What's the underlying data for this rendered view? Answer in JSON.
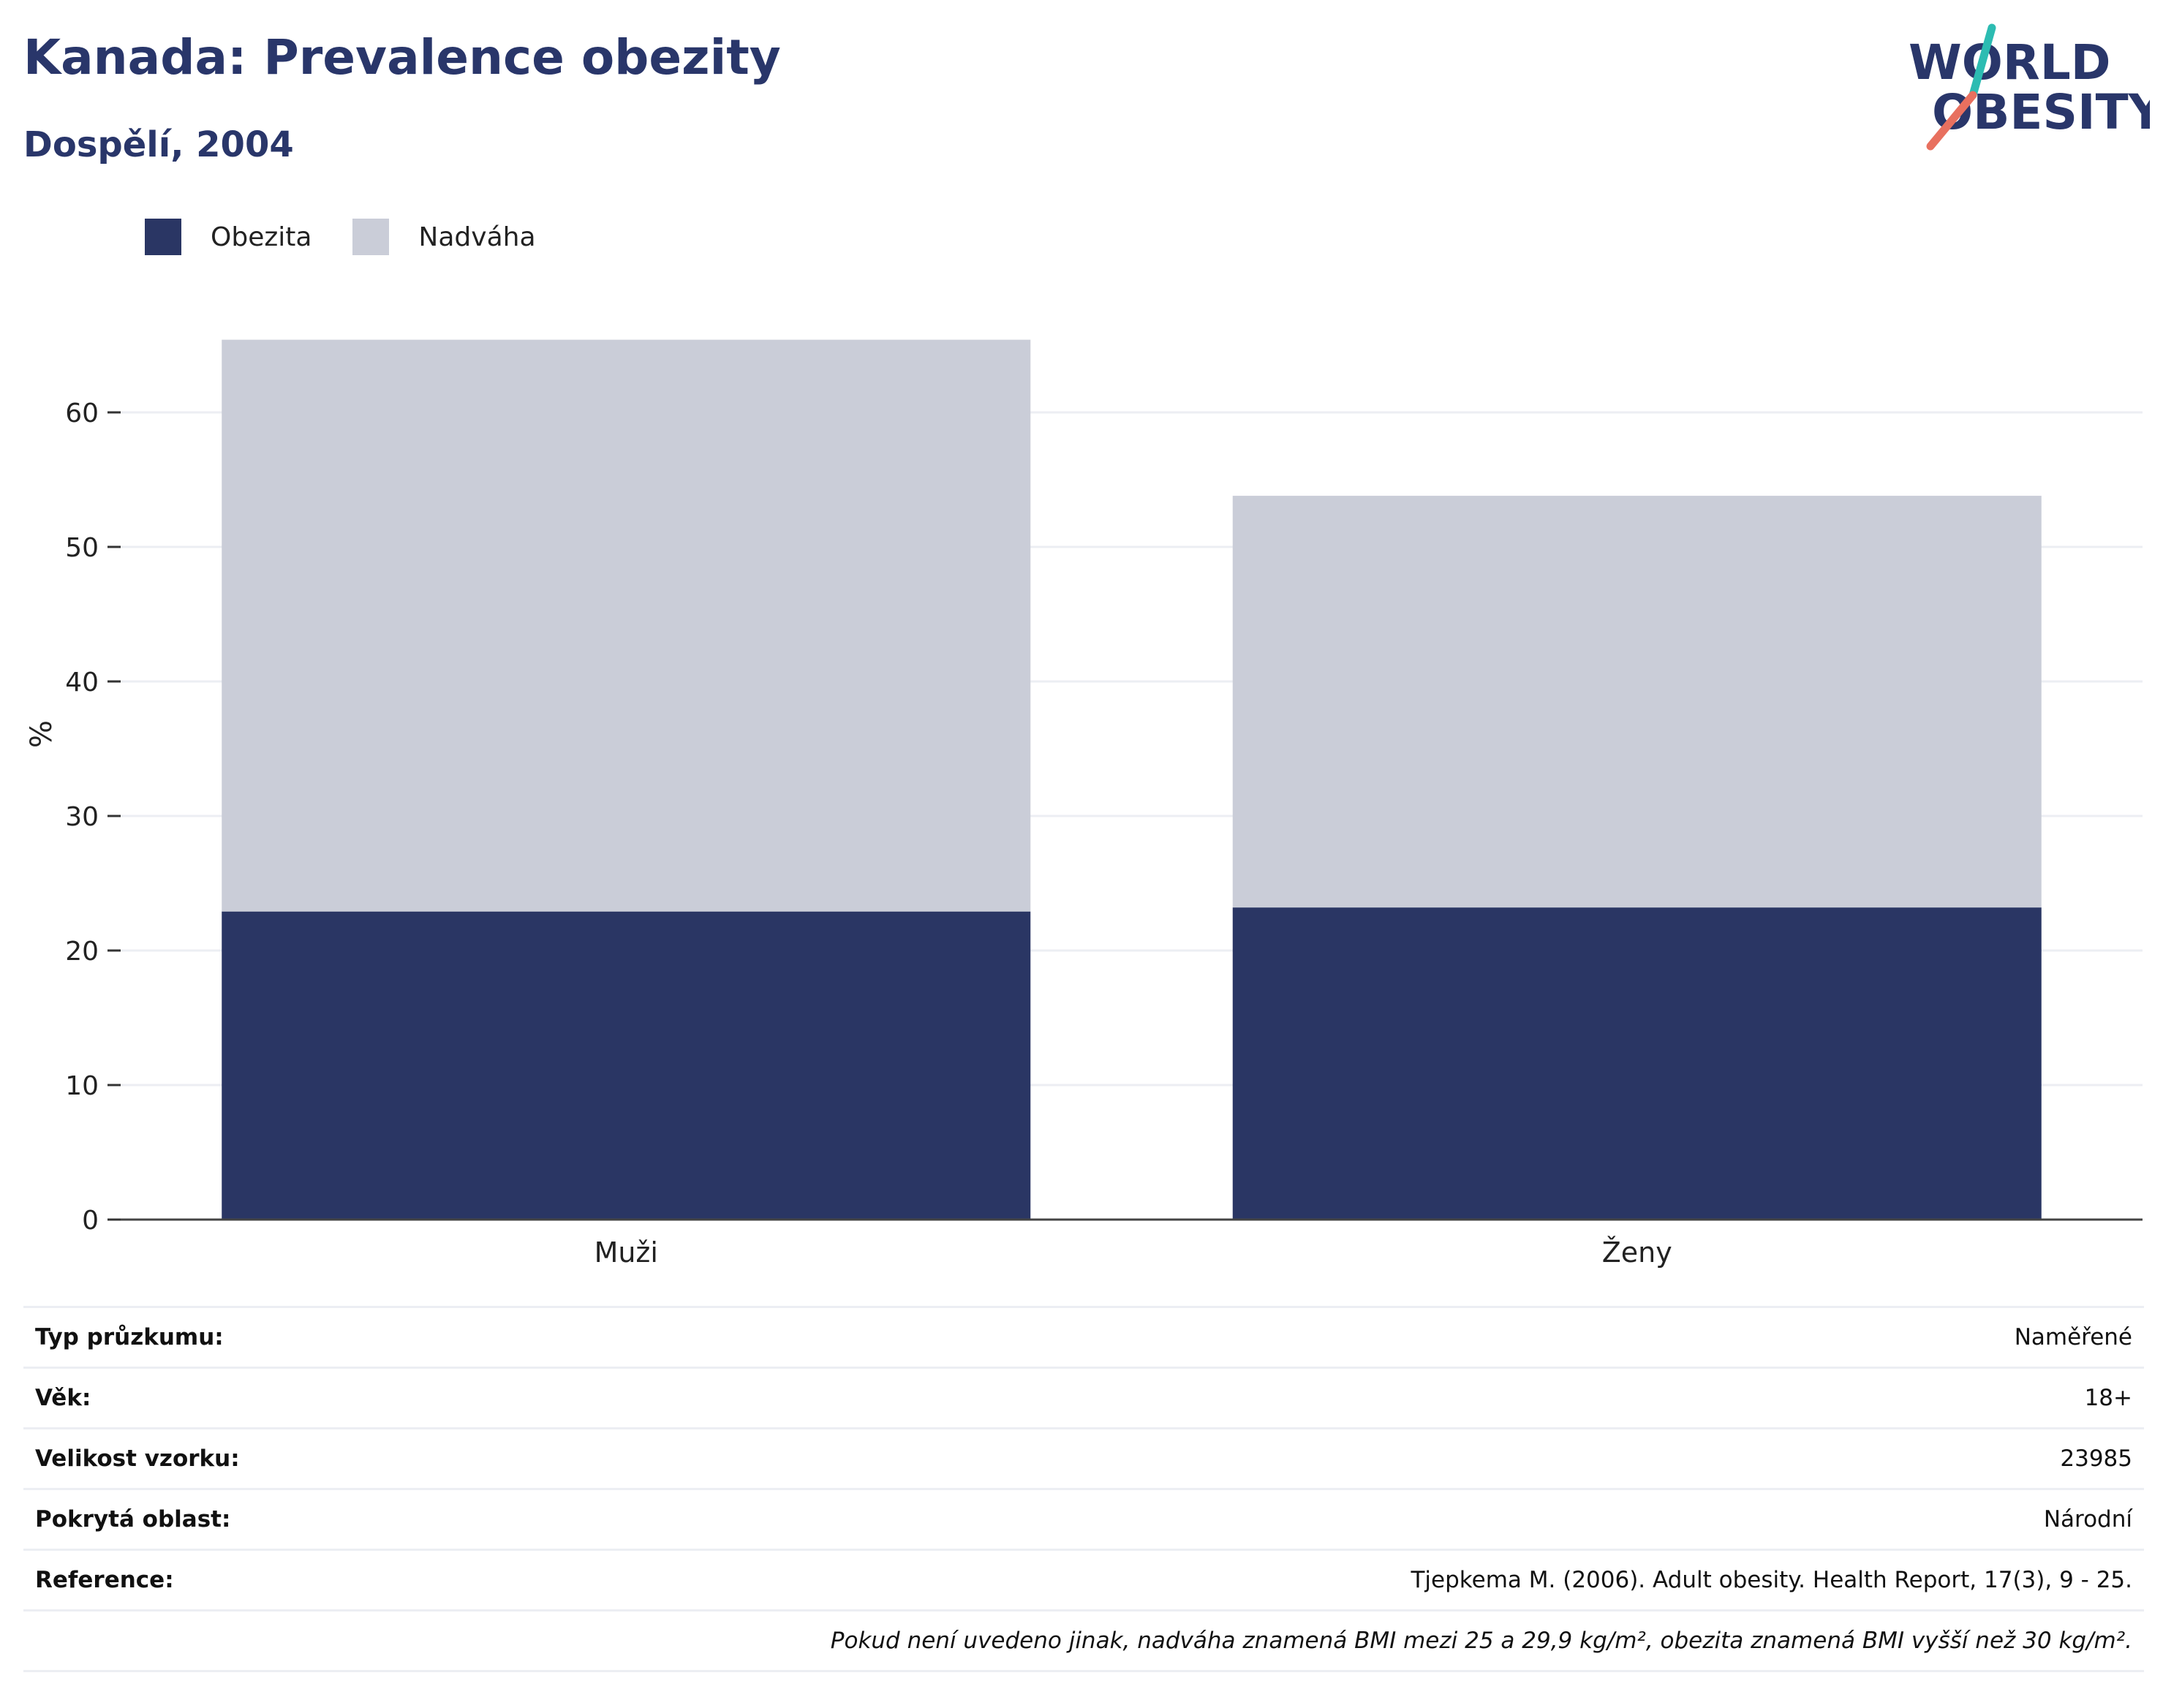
{
  "header": {
    "title": "Kanada: Prevalence obezity",
    "subtitle": "Dospělí, 2004"
  },
  "logo": {
    "line1": "WORLD",
    "line2": "OBESITY",
    "icon": "world-obesity-logo"
  },
  "colors": {
    "obesity": "#2a3664",
    "overweight": "#cacdd8",
    "text": "#29366a",
    "accent_teal": "#2cbcb2",
    "accent_coral": "#e8705f"
  },
  "legend": [
    {
      "label": "Obezita",
      "color": "#2a3664"
    },
    {
      "label": "Nadváha",
      "color": "#cacdd8"
    }
  ],
  "chart_data": {
    "type": "bar",
    "stacked": true,
    "categories": [
      "Muži",
      "Ženy"
    ],
    "series": [
      {
        "name": "Obezita",
        "values": [
          22.9,
          23.2
        ]
      },
      {
        "name": "Nadváha",
        "values": [
          42.5,
          30.6
        ]
      }
    ],
    "ylabel": "%",
    "xlabel": "",
    "ylim": [
      0,
      70
    ],
    "yticks": [
      0,
      10,
      20,
      30,
      40,
      50,
      60
    ],
    "grid": true,
    "legend_position": "top-left"
  },
  "meta": [
    {
      "label": "Typ průzkumu:",
      "value": "Naměřené"
    },
    {
      "label": "Věk:",
      "value": "18+"
    },
    {
      "label": "Velikost vzorku:",
      "value": "23985"
    },
    {
      "label": "Pokrytá oblast:",
      "value": "Národní"
    },
    {
      "label": "Reference:",
      "value": "Tjepkema M. (2006). Adult obesity. Health Report, 17(3), 9 - 25."
    }
  ],
  "note": "Pokud není uvedeno jinak, nadváha znamená BMI mezi 25 a 29,9 kg/m², obezita znamená BMI vyšší než 30 kg/m²."
}
